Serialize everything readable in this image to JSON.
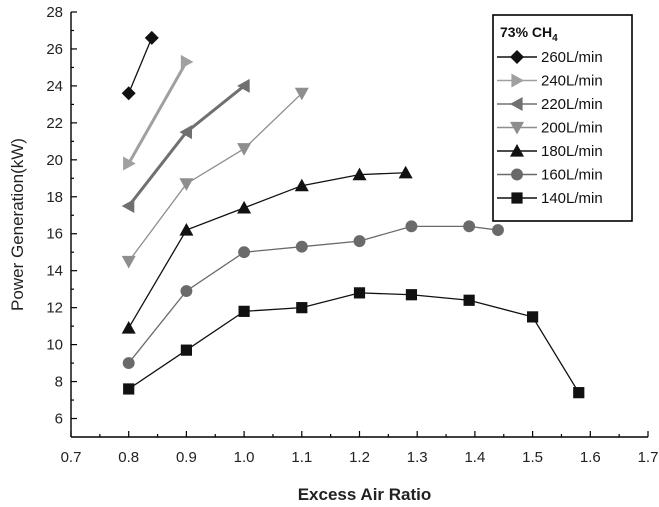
{
  "chart_data": {
    "type": "line",
    "title": "",
    "xlabel": "Excess Air Ratio",
    "ylabel": "Power Generation(kW)",
    "xlim": [
      0.7,
      1.7
    ],
    "ylim": [
      5,
      28
    ],
    "xticks": [
      0.7,
      0.8,
      0.9,
      1.0,
      1.1,
      1.2,
      1.3,
      1.4,
      1.5,
      1.6,
      1.7
    ],
    "xtick_labels": [
      "0.7",
      "0.8",
      "0.9",
      "1.0",
      "1.1",
      "1.2",
      "1.3",
      "1.4",
      "1.5",
      "1.6",
      "1.7"
    ],
    "yticks": [
      6,
      8,
      10,
      12,
      14,
      16,
      18,
      20,
      22,
      24,
      26,
      28
    ],
    "ytick_labels": [
      "6",
      "8",
      "10",
      "12",
      "14",
      "16",
      "18",
      "20",
      "22",
      "24",
      "26",
      "28"
    ],
    "grid": false,
    "legend": {
      "title_main": "73% CH",
      "title_sub": "4",
      "placement": "top-right"
    },
    "series": [
      {
        "name": "260L/min",
        "marker": "diamond",
        "color": "#111111",
        "line_color": "#111111",
        "x": [
          0.8,
          0.84
        ],
        "y": [
          23.6,
          26.6
        ]
      },
      {
        "name": "240L/min",
        "marker": "triangle-right",
        "color": "#a0a0a0",
        "line_color": "#a0a0a0",
        "x": [
          0.8,
          0.9
        ],
        "y": [
          19.8,
          25.3
        ]
      },
      {
        "name": "220L/min",
        "marker": "triangle-left",
        "color": "#707070",
        "line_color": "#707070",
        "x": [
          0.8,
          0.9,
          1.0
        ],
        "y": [
          17.5,
          21.5,
          24.0
        ]
      },
      {
        "name": "200L/min",
        "marker": "triangle-down",
        "color": "#8e8e8e",
        "line_color": "#8e8e8e",
        "x": [
          0.8,
          0.9,
          1.0,
          1.1
        ],
        "y": [
          14.5,
          18.7,
          20.6,
          23.6
        ]
      },
      {
        "name": "180L/min",
        "marker": "triangle-up",
        "color": "#111111",
        "line_color": "#111111",
        "x": [
          0.8,
          0.9,
          1.0,
          1.1,
          1.2,
          1.28
        ],
        "y": [
          10.9,
          16.2,
          17.4,
          18.6,
          19.2,
          19.3
        ]
      },
      {
        "name": "160L/min",
        "marker": "circle",
        "color": "#6a6a6a",
        "line_color": "#6a6a6a",
        "x": [
          0.8,
          0.9,
          1.0,
          1.1,
          1.2,
          1.29,
          1.39,
          1.44
        ],
        "y": [
          9.0,
          12.9,
          15.0,
          15.3,
          15.6,
          16.4,
          16.4,
          16.2
        ]
      },
      {
        "name": "140L/min",
        "marker": "square",
        "color": "#111111",
        "line_color": "#111111",
        "x": [
          0.8,
          0.9,
          1.0,
          1.1,
          1.2,
          1.29,
          1.39,
          1.5,
          1.58
        ],
        "y": [
          7.6,
          9.7,
          11.8,
          12.0,
          12.8,
          12.7,
          12.4,
          11.5,
          7.4
        ]
      }
    ]
  }
}
